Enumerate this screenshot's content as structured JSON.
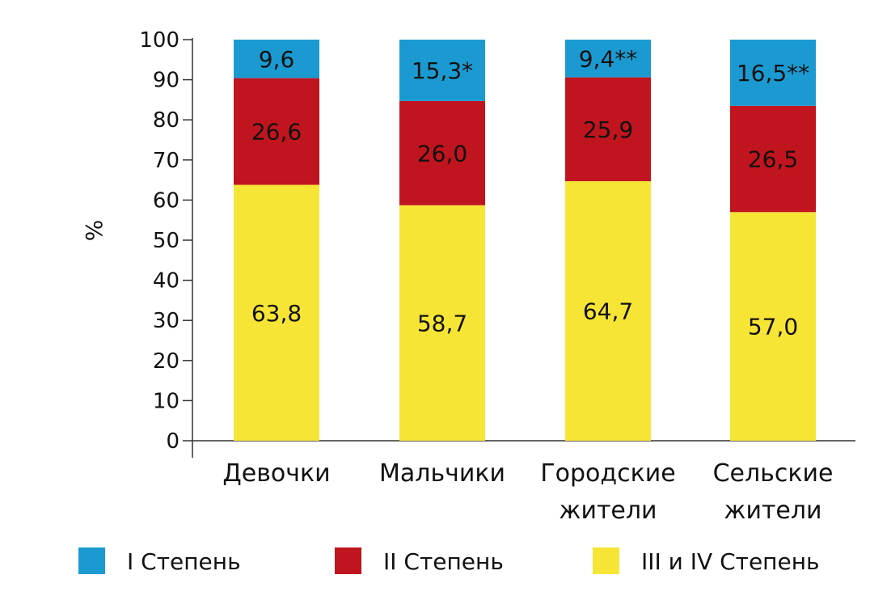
{
  "chart_data": {
    "type": "bar",
    "stacked": true,
    "ylabel": "%",
    "ylim": [
      0,
      100
    ],
    "yticks": [
      "0",
      "10",
      "20",
      "30",
      "40",
      "50",
      "60",
      "70",
      "80",
      "90",
      "100"
    ],
    "categories": [
      [
        "Девочки"
      ],
      [
        "Мальчики"
      ],
      [
        "Городские",
        "жители"
      ],
      [
        "Сельские",
        "жители"
      ]
    ],
    "series": [
      {
        "name": "III и IV Степень",
        "color": "#f7e536",
        "values": [
          63.8,
          58.7,
          64.7,
          57.0
        ],
        "labels": [
          "63,8",
          "58,7",
          "64,7",
          "57,0"
        ]
      },
      {
        "name": "II Степень",
        "color": "#c0151e",
        "values": [
          26.6,
          26.0,
          25.9,
          26.5
        ],
        "labels": [
          "26,6",
          "26,0",
          "25,9",
          "26,5"
        ]
      },
      {
        "name": "I Степень",
        "color": "#1b9ad1",
        "values": [
          9.6,
          15.3,
          9.4,
          16.5
        ],
        "labels": [
          "9,6",
          "15,3*",
          "9,4**",
          "16,5**"
        ]
      }
    ],
    "legend": {
      "placement": "bottom",
      "order": [
        "I Степень",
        "II Степень",
        "III и IV Степень"
      ]
    },
    "grid": false
  }
}
